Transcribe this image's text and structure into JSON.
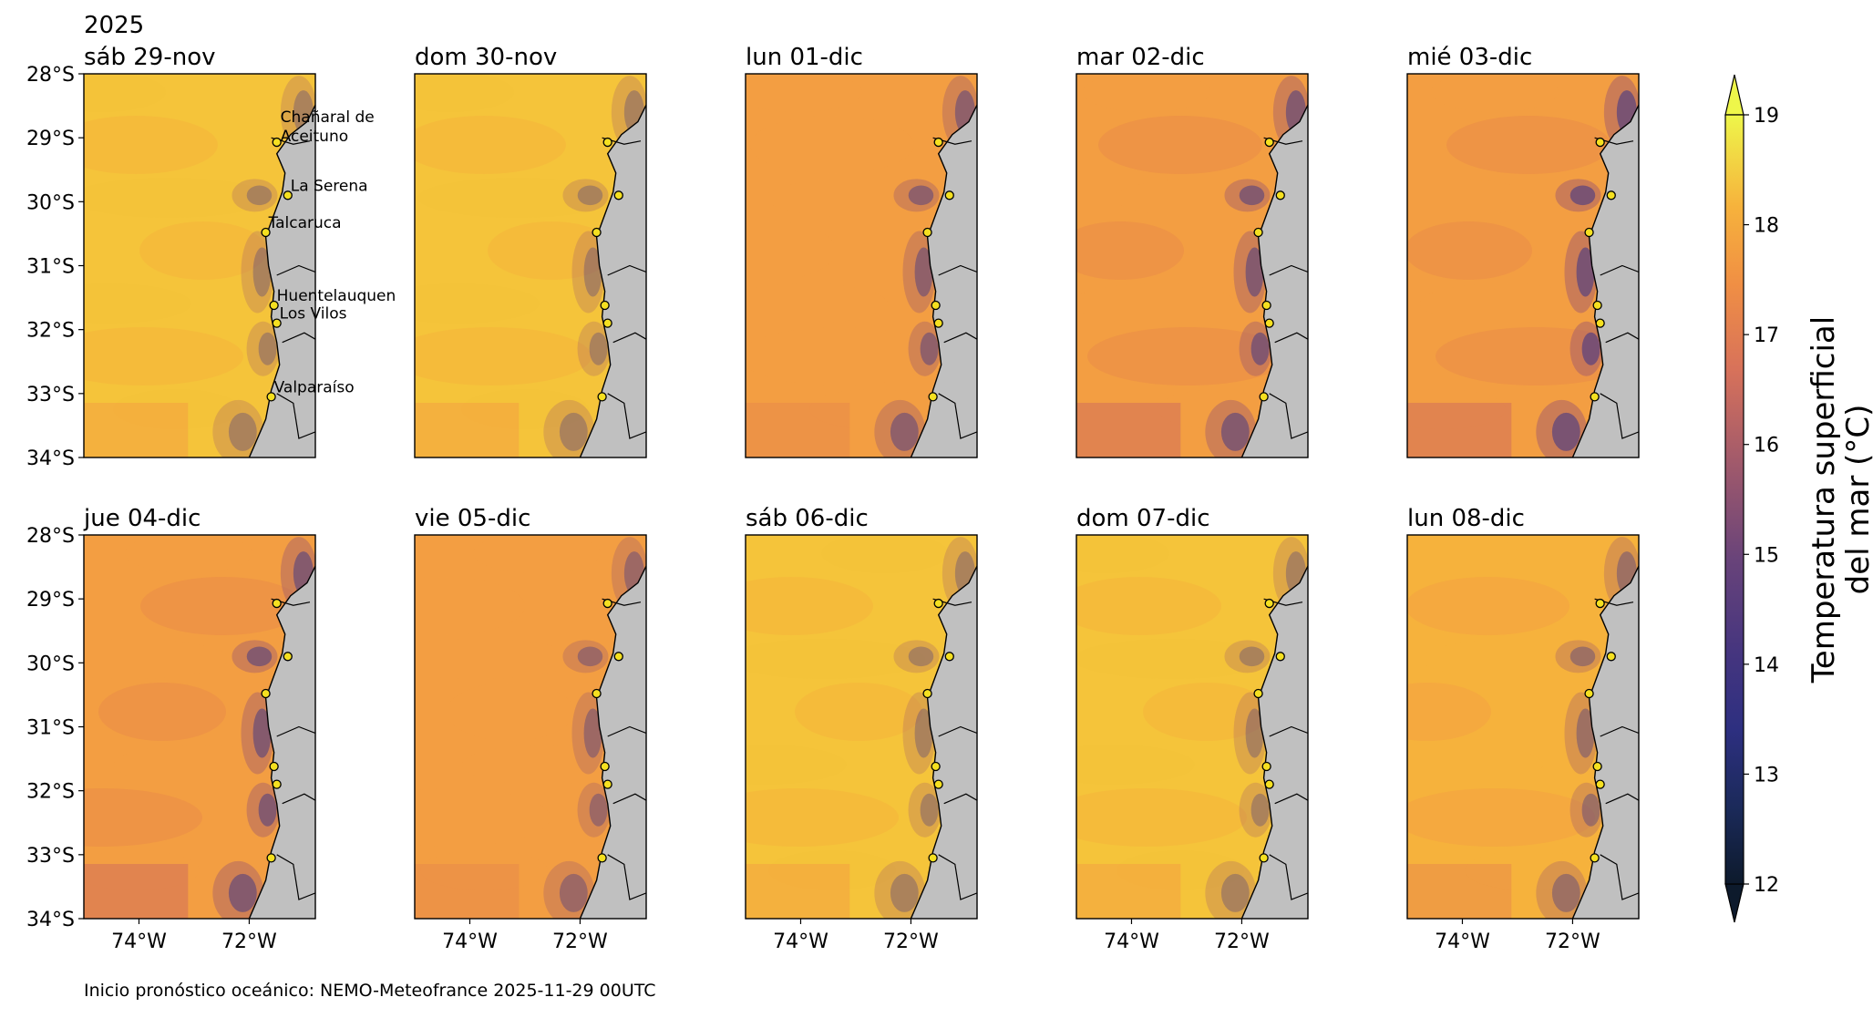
{
  "year": "2025",
  "panel_titles": [
    "sáb 29-nov",
    "dom 30-nov",
    "lun 01-dic",
    "mar 02-dic",
    "mié 03-dic",
    "jue 04-dic",
    "vie 05-dic",
    "sáb 06-dic",
    "dom 07-dic",
    "lun 08-dic"
  ],
  "lat_ticks": [
    "28°S",
    "29°S",
    "30°S",
    "31°S",
    "32°S",
    "33°S",
    "34°S"
  ],
  "lon_ticks": [
    "74°W",
    "72°W"
  ],
  "lat_range": [
    -34,
    -28
  ],
  "lon_range": [
    -75,
    -70.8
  ],
  "stations": [
    {
      "name": "Chañaral de Aceituno",
      "line1": "Chañaral de",
      "line2": "Aceituno",
      "lon": -71.5,
      "lat": -29.07
    },
    {
      "name": "La Serena",
      "line1": "La Serena",
      "line2": "",
      "lon": -71.3,
      "lat": -29.9
    },
    {
      "name": "Talcaruca",
      "line1": "Talcaruca",
      "line2": "",
      "lon": -71.7,
      "lat": -30.48
    },
    {
      "name": "Huentelauquen",
      "line1": "Huentelauquen",
      "line2": "",
      "lon": -71.55,
      "lat": -31.62
    },
    {
      "name": "Los Vilos",
      "line1": "Los Vilos",
      "line2": "",
      "lon": -71.5,
      "lat": -31.9
    },
    {
      "name": "Valparaíso",
      "line1": "Valparaíso",
      "line2": "",
      "lon": -71.6,
      "lat": -33.05
    }
  ],
  "colorbar": {
    "label_line1": "Temperatura superficial",
    "label_line2": "del mar (°C)",
    "min": 12,
    "max": 19,
    "ticks": [
      "12",
      "13",
      "14",
      "15",
      "16",
      "17",
      "18",
      "19"
    ]
  },
  "footer": "Inicio pronóstico oceánico: NEMO-Meteofrance 2025-11-29 00UTC",
  "colors": {
    "land": "#c0c0c0",
    "station": "#f5e020",
    "warm": "#f6b23c",
    "cold": "#271b6e"
  }
}
